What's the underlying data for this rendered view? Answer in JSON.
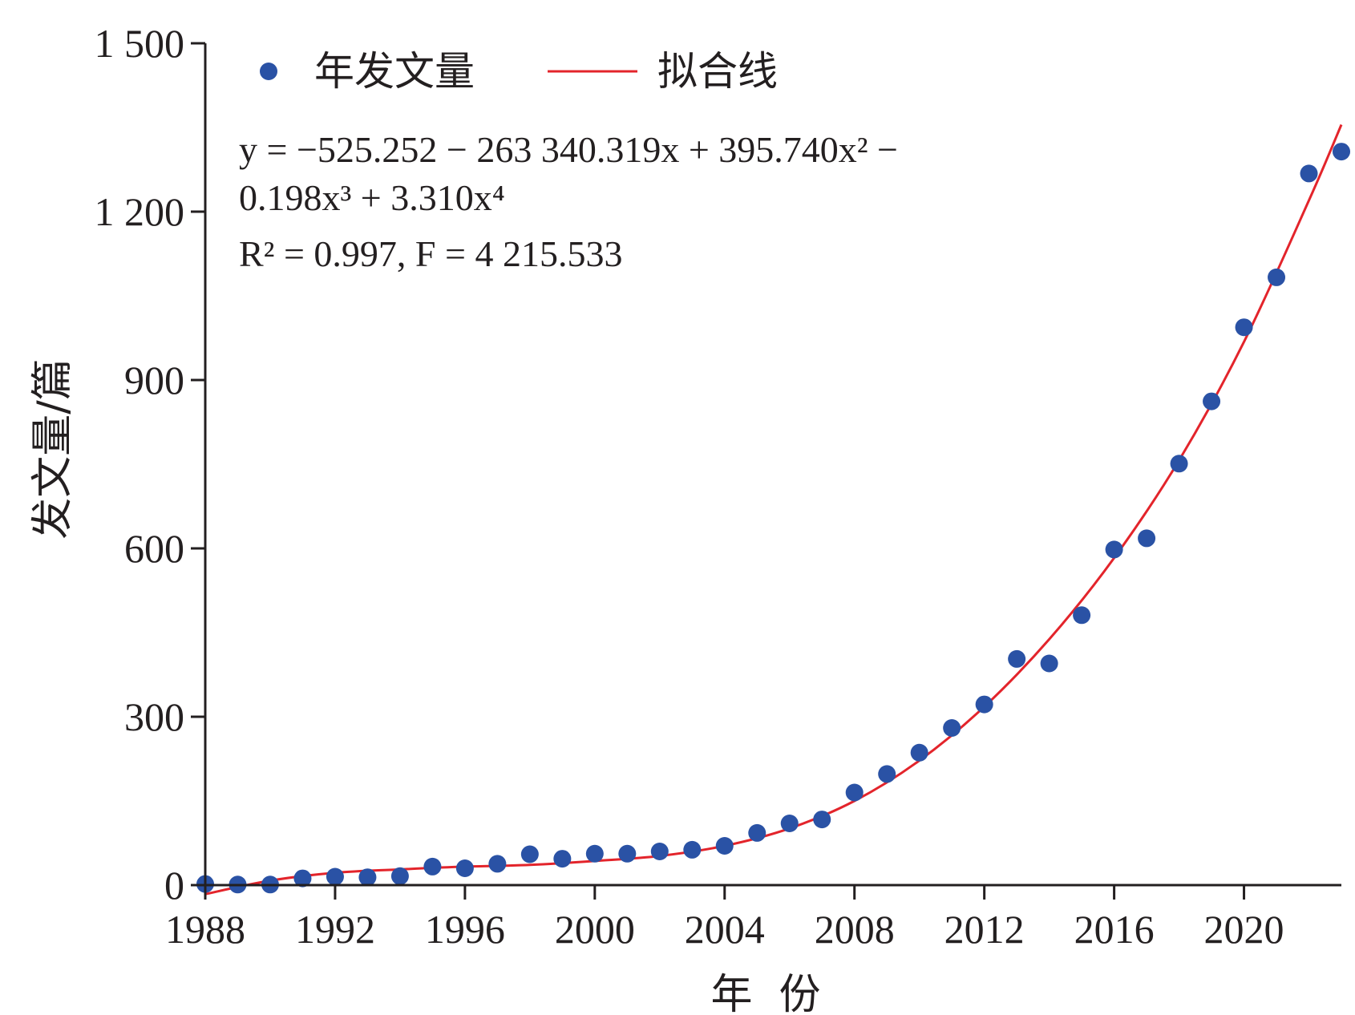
{
  "chart_data": {
    "type": "scatter",
    "xlabel": "年  份",
    "ylabel": "发文量/篇",
    "xlim": [
      1988,
      2023
    ],
    "ylim": [
      0,
      1500
    ],
    "x_ticks": [
      "1988",
      "1992",
      "1996",
      "2000",
      "2004",
      "2008",
      "2012",
      "2016",
      "2020"
    ],
    "y_ticks": [
      "0",
      "300",
      "600",
      "900",
      "1 200",
      "1 500"
    ],
    "legend": {
      "placement": "top-left",
      "scatter_label": "年发文量",
      "line_label": "拟合线"
    },
    "equation": {
      "line1": "y = −525.252 − 263 340.319x + 395.740x² −",
      "line2": "0.198x³ + 3.310x⁴",
      "line3": "R² = 0.997, F = 4 215.533"
    },
    "colors": {
      "points": "#2a52a5",
      "fit_line": "#e3242b",
      "axis": "#231f20"
    },
    "series": [
      {
        "name": "年发文量",
        "type": "scatter",
        "x": [
          1988,
          1989,
          1990,
          1991,
          1992,
          1993,
          1994,
          1995,
          1996,
          1997,
          1998,
          1999,
          2000,
          2001,
          2002,
          2003,
          2004,
          2005,
          2006,
          2007,
          2008,
          2009,
          2010,
          2011,
          2012,
          2013,
          2014,
          2015,
          2016,
          2017,
          2018,
          2019,
          2020,
          2021,
          2022,
          2023
        ],
        "y": [
          2,
          1,
          1,
          12,
          15,
          14,
          16,
          33,
          30,
          38,
          55,
          47,
          56,
          56,
          60,
          63,
          70,
          93,
          110,
          117,
          165,
          198,
          236,
          280,
          322,
          403,
          395,
          481,
          598,
          618,
          751,
          862,
          994,
          1083,
          1268,
          1307
        ]
      },
      {
        "name": "拟合线",
        "type": "line",
        "x": [
          1988,
          1990,
          1992,
          1994,
          1996,
          1998,
          2000,
          2002,
          2004,
          2006,
          2008,
          2010,
          2012,
          2014,
          2016,
          2018,
          2020,
          2022,
          2023
        ],
        "y": [
          -16,
          8,
          22,
          28,
          33,
          36,
          43,
          52,
          70,
          101,
          150,
          222,
          318,
          438,
          583,
          757,
          968,
          1220,
          1355
        ]
      }
    ]
  }
}
